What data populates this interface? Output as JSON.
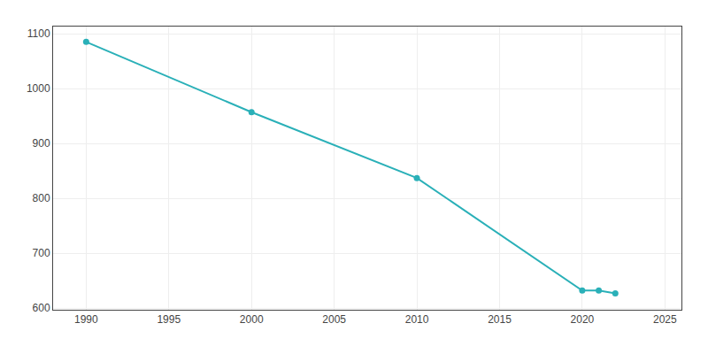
{
  "chart_data": {
    "type": "line",
    "x": [
      1990,
      2000,
      2010,
      2020,
      2021,
      2022
    ],
    "values": [
      1085,
      957,
      837,
      632,
      632,
      627
    ],
    "color": "#2ab0b8",
    "marker": "circle",
    "xlim": [
      1988,
      2026
    ],
    "ylim": [
      597,
      1113
    ],
    "xticks": [
      1990,
      1995,
      2000,
      2005,
      2010,
      2015,
      2020,
      2025
    ],
    "yticks": [
      600,
      700,
      800,
      900,
      1000,
      1100
    ],
    "grid": true
  }
}
